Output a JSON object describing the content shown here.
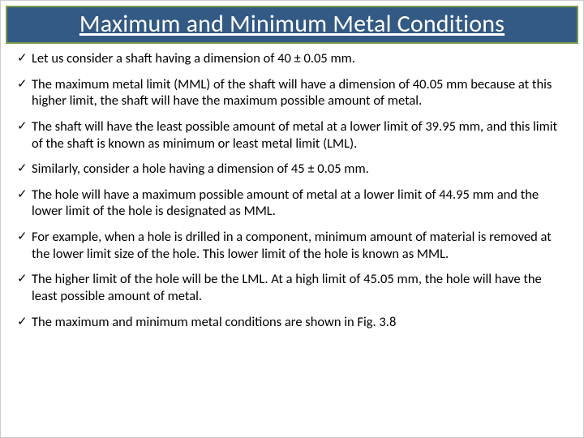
{
  "title": "Maximum and Minimum Metal Conditions",
  "check_glyph": "✓",
  "bullets": [
    "Let us consider a shaft having a dimension of 40 ± 0.05 mm.",
    "The maximum metal limit (MML) of the shaft will have a dimension of 40.05 mm because at this higher limit, the shaft will have the maximum possible amount of metal.",
    "The shaft will have the least possible amount of metal at a lower limit of 39.95 mm, and this limit of the shaft is known as minimum or least metal limit (LML).",
    "Similarly, consider a hole having a dimension of 45 ± 0.05 mm.",
    "The hole will have a maximum possible amount of metal at a lower limit of 44.95 mm and the lower limit of the hole is designated as MML.",
    "For example, when a hole is drilled in a component, minimum amount of material is removed at the lower limit size of the hole. This lower limit of the hole is known as MML.",
    "The higher limit of the hole will be the LML. At a high limit of 45.05 mm, the hole will have the least possible amount of metal.",
    "The maximum and minimum metal conditions are shown in Fig. 3.8"
  ],
  "colors": {
    "title_bg": "#335a84",
    "title_border": "#7a9a4a",
    "title_text": "#ffffff",
    "body_text": "#000000"
  }
}
